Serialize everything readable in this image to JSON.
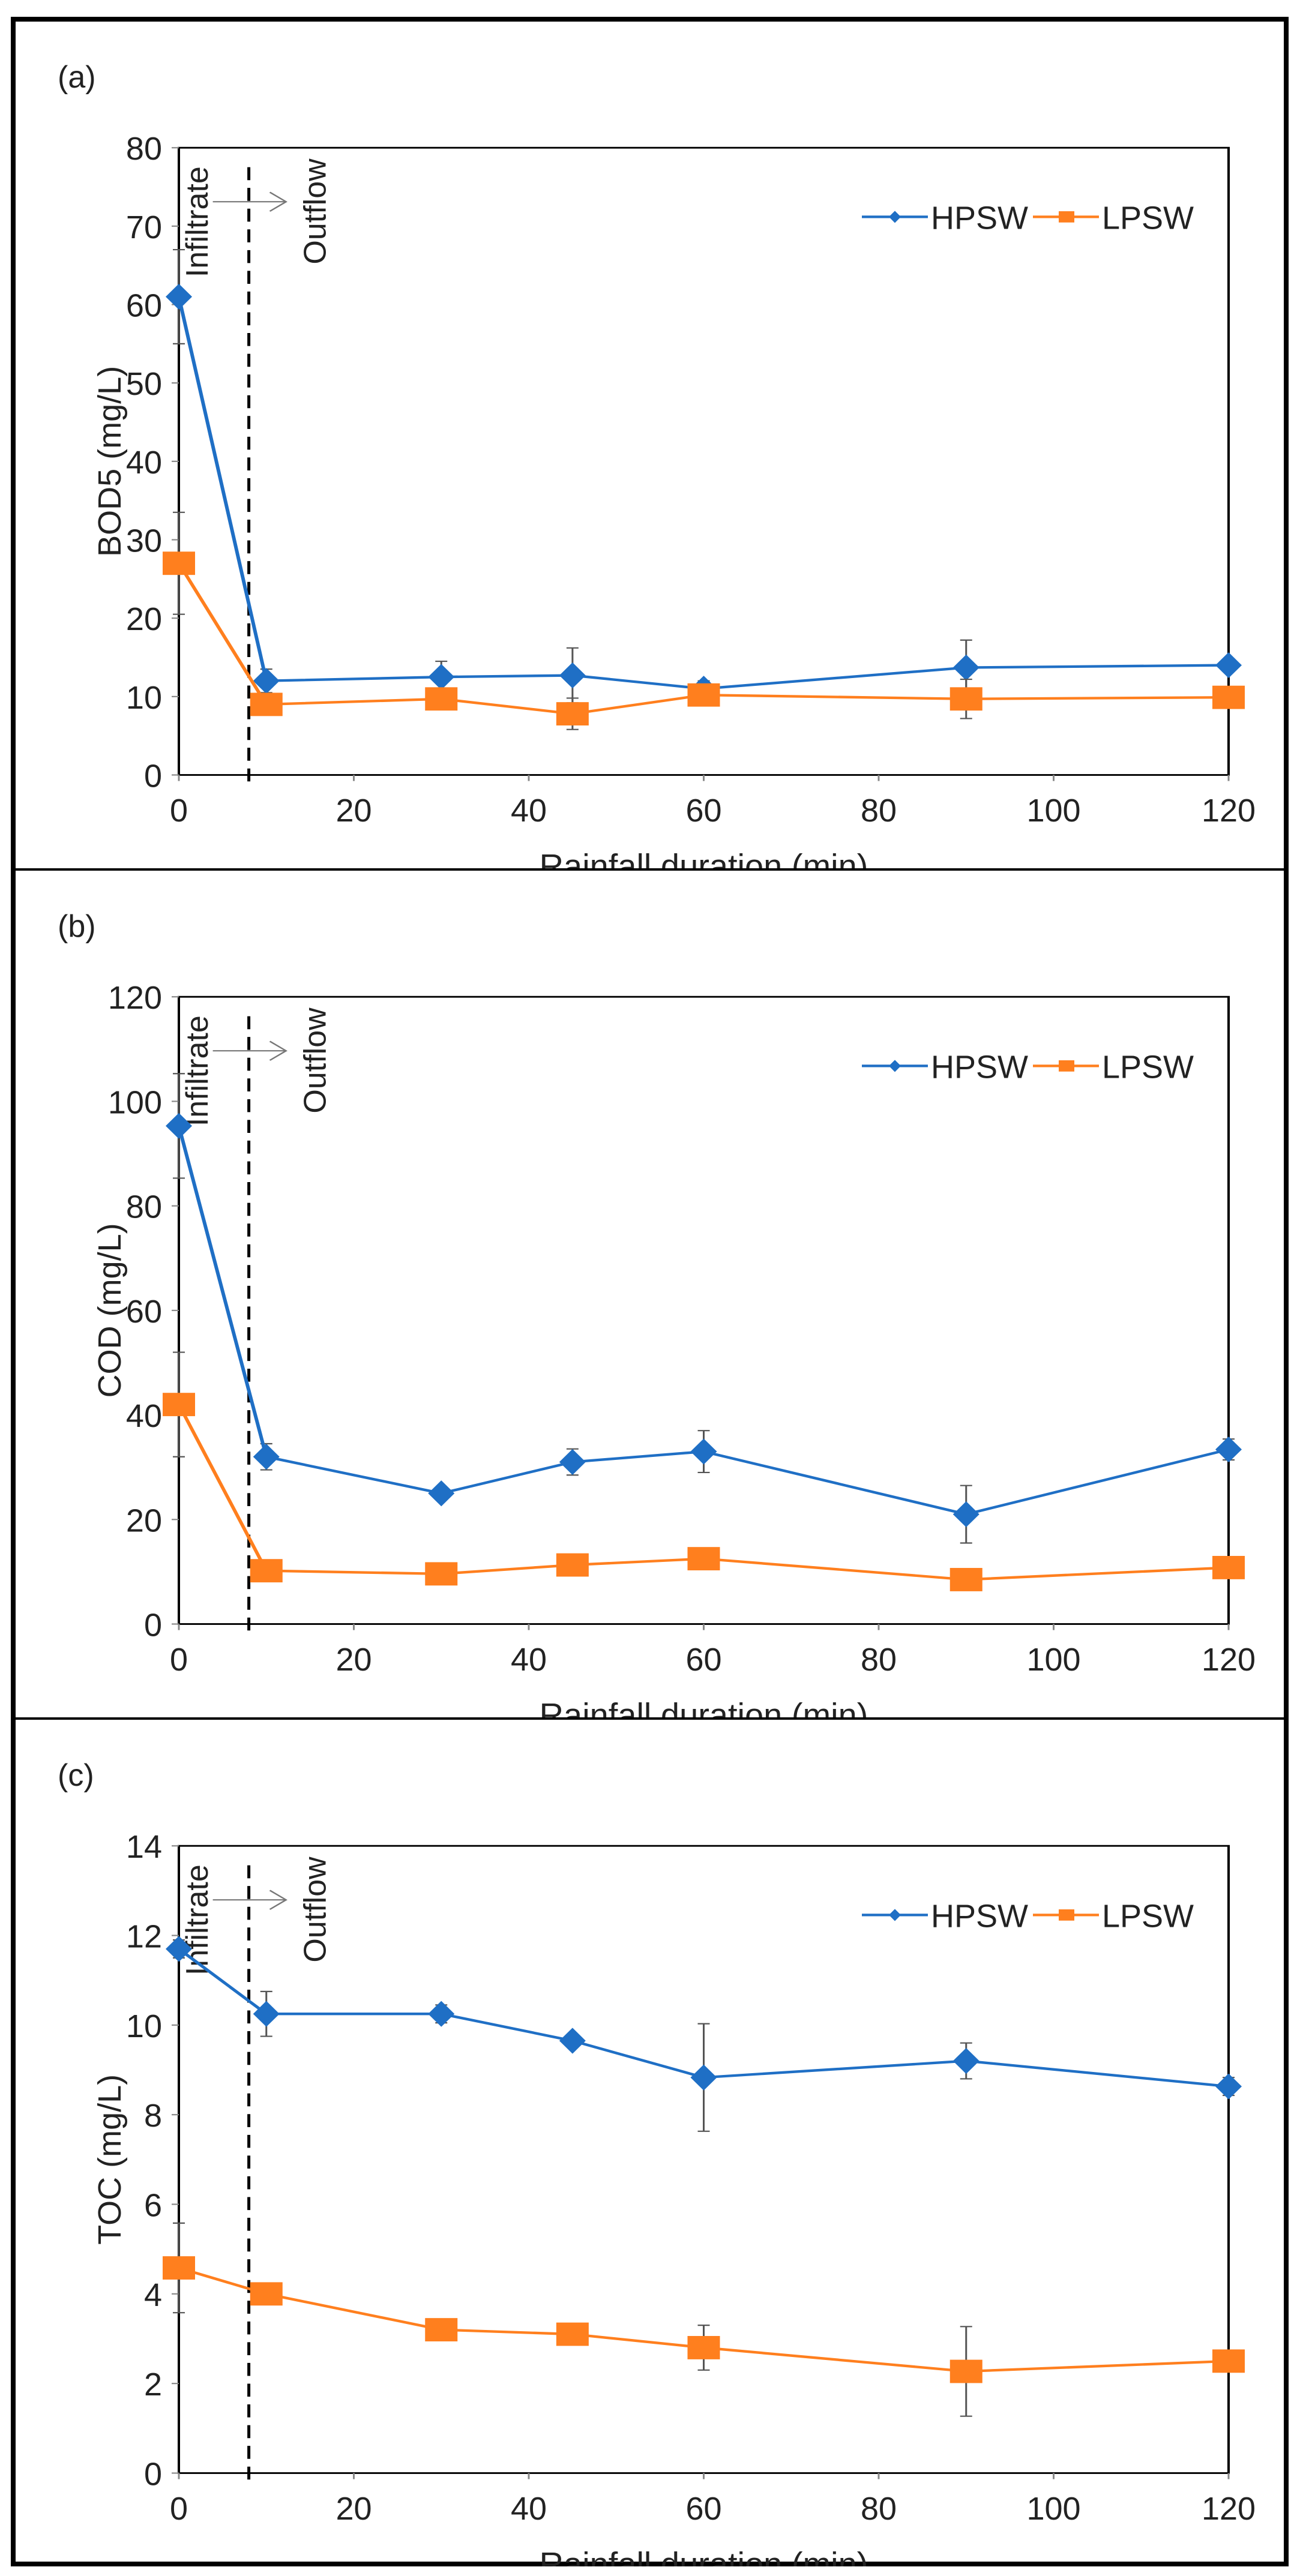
{
  "colors": {
    "HPSW": "#1f6fc5",
    "LPSW": "#ff7f1e",
    "axis": "#000000",
    "error": "#555555"
  },
  "chart_data": [
    {
      "type": "line",
      "panel_label": "(a)",
      "title": "",
      "xlabel": "Rainfall duration (min)",
      "ylabel": "BOD5 (mg/L)",
      "xlim": [
        0,
        120
      ],
      "ylim": [
        0,
        80
      ],
      "xticks": [
        "0",
        "20",
        "40",
        "60",
        "80",
        "100",
        "120"
      ],
      "yticks": [
        "0",
        "10",
        "20",
        "30",
        "40",
        "50",
        "60",
        "70",
        "80"
      ],
      "x": [
        0,
        10,
        30,
        45,
        60,
        90,
        120
      ],
      "annotations": {
        "left": "Infiltrate",
        "right": "Outflow",
        "divider_x": 8
      },
      "legend": "top-right",
      "series": [
        {
          "name": "HPSW",
          "marker": "diamond",
          "values": [
            61,
            12,
            12.5,
            12.7,
            11,
            13.7,
            14
          ],
          "error": [
            6,
            1.5,
            2,
            3.5,
            1,
            3.5,
            0.5
          ]
        },
        {
          "name": "LPSW",
          "marker": "square",
          "values": [
            27,
            9,
            9.7,
            7.8,
            10.2,
            9.7,
            9.9
          ],
          "error": [
            6.5,
            0.5,
            0.5,
            2,
            0.5,
            2.5,
            0.5
          ]
        }
      ]
    },
    {
      "type": "line",
      "panel_label": "(b)",
      "title": "",
      "xlabel": "Rainfall duration (min)",
      "ylabel": "COD (mg/L)",
      "xlim": [
        0,
        120
      ],
      "ylim": [
        0,
        120
      ],
      "xticks": [
        "0",
        "20",
        "40",
        "60",
        "80",
        "100",
        "120"
      ],
      "yticks": [
        "0",
        "20",
        "40",
        "60",
        "80",
        "100",
        "120"
      ],
      "x": [
        0,
        10,
        30,
        45,
        60,
        90,
        120
      ],
      "annotations": {
        "left": "Infiltrate",
        "right": "Outflow",
        "divider_x": 8
      },
      "legend": "top-right",
      "series": [
        {
          "name": "HPSW",
          "marker": "diamond",
          "values": [
            95.3,
            32,
            25,
            31,
            33,
            21,
            33.4
          ],
          "error": [
            10,
            2.5,
            1,
            2.5,
            4,
            5.5,
            2
          ]
        },
        {
          "name": "LPSW",
          "marker": "square",
          "values": [
            42,
            10.2,
            9.6,
            11.3,
            12.5,
            8.5,
            10.8
          ],
          "error": [
            10,
            0.5,
            0.5,
            0.5,
            0.5,
            0.5,
            0.5
          ]
        }
      ]
    },
    {
      "type": "line",
      "panel_label": "(c)",
      "title": "",
      "xlabel": "Rainfall duration (min)",
      "ylabel": "TOC (mg/L)",
      "xlim": [
        0,
        120
      ],
      "ylim": [
        0,
        14
      ],
      "xticks": [
        "0",
        "20",
        "40",
        "60",
        "80",
        "100",
        "120"
      ],
      "yticks": [
        "0",
        "2",
        "4",
        "6",
        "8",
        "10",
        "12",
        "14"
      ],
      "x": [
        0,
        10,
        30,
        45,
        60,
        90,
        120
      ],
      "annotations": {
        "left": "Infiltrate",
        "right": "Outflow",
        "divider_x": 8
      },
      "legend": "top-right",
      "series": [
        {
          "name": "HPSW",
          "marker": "diamond",
          "values": [
            11.7,
            10.25,
            10.25,
            9.65,
            8.83,
            9.2,
            8.63
          ],
          "error": [
            0.2,
            0.5,
            0.2,
            0.1,
            1.2,
            0.4,
            0.2
          ]
        },
        {
          "name": "LPSW",
          "marker": "square",
          "values": [
            4.58,
            4.0,
            3.2,
            3.1,
            2.8,
            2.27,
            2.5
          ],
          "error": [
            1.0,
            0.1,
            0.1,
            0.1,
            0.5,
            1.0,
            0.1
          ]
        }
      ]
    }
  ]
}
